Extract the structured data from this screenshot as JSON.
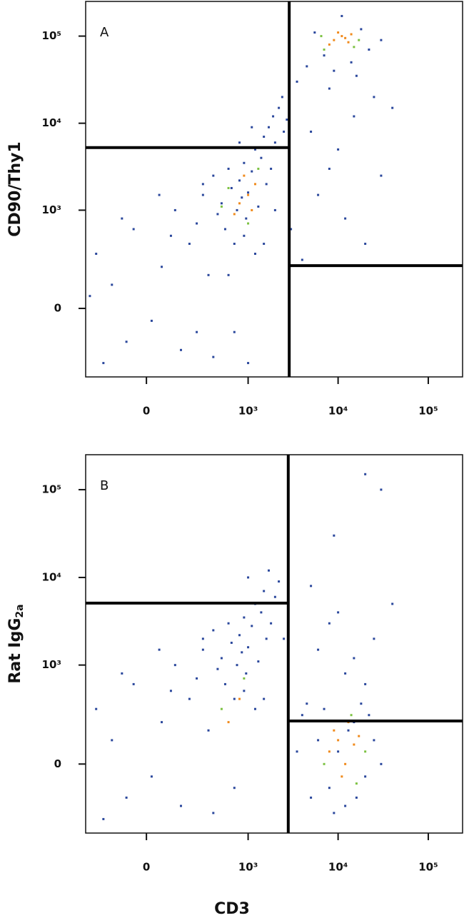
{
  "chart_data": [
    {
      "type": "scatter",
      "label": "A",
      "ylabel": "CD90/Thy1",
      "scale": "biexponential",
      "xlim": [
        -338,
        240000
      ],
      "ylim": [
        -446,
        250000
      ],
      "xticks": [
        0,
        {
          "value": 1000,
          "label": "10³"
        },
        {
          "value": 10000,
          "label": "10⁴"
        },
        {
          "value": 100000,
          "label": "10⁵"
        }
      ],
      "yticks": [
        0,
        {
          "value": 1000,
          "label": "10³"
        },
        {
          "value": 10000,
          "label": "10⁴"
        },
        {
          "value": 100000,
          "label": "10⁵"
        }
      ],
      "gates": {
        "x": 2870,
        "y_left": 5250,
        "y_right": 208
      },
      "layers": [
        {
          "color": "#2a479c",
          "x": [
            -150,
            -80,
            -250,
            -50,
            20,
            60,
            120,
            150,
            200,
            250,
            300,
            350,
            400,
            450,
            500,
            550,
            600,
            650,
            700,
            750,
            800,
            850,
            900,
            950,
            1000,
            1100,
            1200,
            1300,
            1400,
            1500,
            1600,
            1700,
            1800,
            1900,
            2000,
            2200,
            2400,
            2500,
            700,
            400,
            -200,
            100,
            50,
            -100,
            300,
            900,
            1200,
            3500,
            5000,
            8000,
            15000,
            25000,
            40000,
            6000,
            12000,
            20000,
            10000,
            30000,
            4000,
            7000,
            9000,
            14000,
            18000,
            22000,
            5500,
            11000,
            16000,
            30000,
            8000,
            4500,
            3000,
            1000,
            600,
            250,
            -300,
            1500,
            2000,
            800,
            1100,
            2700
          ],
          "y": [
            100,
            -150,
            300,
            600,
            -50,
            200,
            1000,
            -200,
            400,
            700,
            1500,
            150,
            2500,
            900,
            1200,
            600,
            3000,
            1800,
            400,
            1000,
            2200,
            1400,
            3500,
            800,
            1600,
            2800,
            5000,
            1100,
            4000,
            7000,
            2000,
            9000,
            3000,
            12000,
            6000,
            15000,
            20000,
            8000,
            -100,
            -250,
            -300,
            500,
            1500,
            800,
            2000,
            500,
            300,
            30000,
            8000,
            3000,
            12000,
            20000,
            15000,
            1500,
            800,
            400,
            5000,
            2500,
            250,
            60000,
            40000,
            50000,
            120000,
            70000,
            110000,
            170000,
            35000,
            90000,
            25000,
            45000,
            600,
            -300,
            150,
            -100,
            50,
            400,
            1000,
            6000,
            9000,
            11000
          ]
        },
        {
          "color": "#7cc242",
          "x": [
            600,
            1300,
            1000,
            7000,
            15000,
            6500,
            17000,
            500
          ],
          "y": [
            1800,
            3000,
            700,
            70000,
            75000,
            100000,
            90000,
            1100
          ]
        },
        {
          "color": "#f08a1c",
          "x": [
            9000,
            11000,
            13000,
            10000,
            12000,
            8000,
            14000,
            1000,
            800,
            1200,
            700,
            900,
            1100
          ],
          "y": [
            90000,
            100000,
            85000,
            110000,
            95000,
            80000,
            105000,
            1500,
            1200,
            2000,
            900,
            2500,
            1000
          ]
        }
      ]
    },
    {
      "type": "scatter",
      "label": "B",
      "ylabel": "Rat IgG",
      "ylabel_subscript": "2a",
      "xlabel": "CD3",
      "scale": "biexponential",
      "xlim": [
        -338,
        240000
      ],
      "ylim": [
        -446,
        250000
      ],
      "xticks": [
        0,
        {
          "value": 1000,
          "label": "10³"
        },
        {
          "value": 10000,
          "label": "10⁴"
        },
        {
          "value": 100000,
          "label": "10⁵"
        }
      ],
      "yticks": [
        0,
        {
          "value": 1000,
          "label": "10³"
        },
        {
          "value": 10000,
          "label": "10⁴"
        },
        {
          "value": 100000,
          "label": "10⁵"
        }
      ],
      "gates": {
        "x": 2800,
        "y_left": 5100,
        "y_right": 208
      },
      "layers": [
        {
          "color": "#2a479c",
          "x": [
            -150,
            -80,
            -250,
            -50,
            20,
            60,
            120,
            150,
            200,
            250,
            300,
            350,
            400,
            450,
            500,
            550,
            600,
            650,
            700,
            750,
            800,
            850,
            900,
            950,
            1000,
            1100,
            1200,
            1300,
            1400,
            1600,
            1800,
            2000,
            2200,
            700,
            400,
            -200,
            100,
            50,
            -100,
            300,
            900,
            1200,
            1500,
            2500,
            5000,
            8000,
            15000,
            25000,
            40000,
            6000,
            12000,
            20000,
            10000,
            30000,
            9000,
            20000,
            4000,
            6000,
            8000,
            10000,
            12000,
            15000,
            20000,
            25000,
            30000,
            7000,
            18000,
            5000,
            13000,
            3500,
            4500,
            22000,
            9000,
            16000,
            1500,
            1000,
            1700
          ],
          "y": [
            100,
            -150,
            300,
            600,
            -50,
            200,
            1000,
            -200,
            400,
            700,
            1500,
            150,
            2500,
            900,
            1200,
            600,
            3000,
            1800,
            400,
            1000,
            2200,
            1400,
            3500,
            800,
            1600,
            2800,
            5000,
            1100,
            4000,
            2000,
            3000,
            6000,
            9000,
            -100,
            -250,
            -300,
            500,
            1500,
            800,
            2000,
            500,
            300,
            400,
            2000,
            8000,
            3000,
            1200,
            2000,
            5000,
            1500,
            800,
            600,
            4000,
            100000,
            30000,
            150000,
            250,
            100,
            -100,
            50,
            -200,
            200,
            -50,
            100,
            0,
            300,
            350,
            -150,
            150,
            50,
            350,
            250,
            -250,
            -150,
            7000,
            10000,
            12000
          ]
        },
        {
          "color": "#7cc242",
          "x": [
            7000,
            14000,
            20000,
            900,
            500,
            16000
          ],
          "y": [
            0,
            250,
            50,
            700,
            300,
            -80
          ]
        },
        {
          "color": "#f08a1c",
          "x": [
            8000,
            10000,
            12000,
            15000,
            9000,
            11000,
            13000,
            17000,
            800,
            600
          ],
          "y": [
            50,
            100,
            0,
            80,
            150,
            -50,
            200,
            120,
            400,
            200
          ]
        }
      ]
    }
  ]
}
